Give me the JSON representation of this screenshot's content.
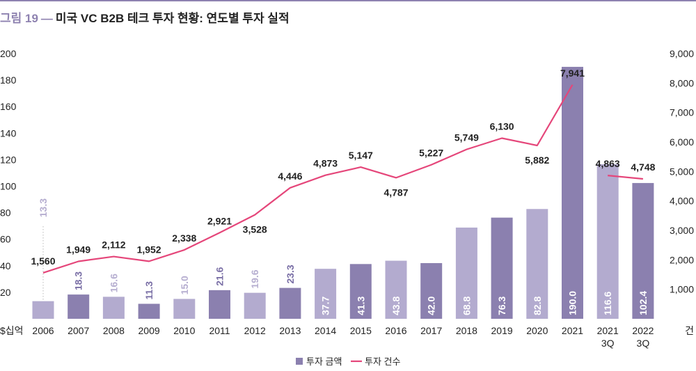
{
  "title": {
    "figure_label": "그림 19",
    "separator": "—",
    "text": "미국 VC B2B 테크 투자 현황: 연도별 투자 실적"
  },
  "colors": {
    "bar_dark": "#8b80af",
    "bar_light": "#b3abcf",
    "line": "#e5467a",
    "text": "#222222",
    "label_dark_on_white": "#7a6fa6",
    "label_light_on_white": "#b6aed0",
    "label_in_bar": "#ffffff"
  },
  "chart_data": {
    "type": "bar",
    "categories": [
      "2006",
      "2007",
      "2008",
      "2009",
      "2010",
      "2011",
      "2012",
      "2013",
      "2014",
      "2015",
      "2016",
      "2017",
      "2018",
      "2019",
      "2020",
      "2021",
      "2021\n3Q",
      "2022\n3Q"
    ],
    "left_axis": {
      "unit_label": "$십억",
      "ylim": [
        0,
        200
      ],
      "ticks": [
        20,
        40,
        60,
        80,
        100,
        120,
        140,
        160,
        180,
        200
      ]
    },
    "right_axis": {
      "unit_label": "건",
      "ylim": [
        0,
        9000
      ],
      "ticks": [
        "1,000",
        "2,000",
        "3,000",
        "4,000",
        "5,000",
        "6,000",
        "7,000",
        "8,000",
        "9,000"
      ],
      "tick_values": [
        1000,
        2000,
        3000,
        4000,
        5000,
        6000,
        7000,
        8000,
        9000
      ]
    },
    "series": [
      {
        "name": "투자 금액",
        "type": "bar",
        "axis": "left",
        "values": [
          13.3,
          18.3,
          16.6,
          11.3,
          15.0,
          21.6,
          19.6,
          23.3,
          37.7,
          41.3,
          43.8,
          42.0,
          68.8,
          76.3,
          82.8,
          190.0,
          116.6,
          102.4
        ],
        "labels": [
          "13.3",
          "18.3",
          "16.6",
          "11.3",
          "15.0",
          "21.6",
          "19.6",
          "23.3",
          "37.7",
          "41.3",
          "43.8",
          "42.0",
          "68.8",
          "76.3",
          "82.8",
          "190.0",
          "116.6",
          "102.4"
        ],
        "shade": [
          "light",
          "dark",
          "light",
          "dark",
          "light",
          "dark",
          "light",
          "dark",
          "light",
          "dark",
          "light",
          "dark",
          "light",
          "dark",
          "light",
          "dark",
          "light",
          "dark"
        ]
      },
      {
        "name": "투자 건수",
        "type": "line",
        "axis": "right",
        "values": [
          1560,
          1949,
          2112,
          1952,
          2338,
          2921,
          3528,
          4446,
          4873,
          5147,
          4787,
          5227,
          5749,
          6130,
          5882,
          7941,
          4863,
          4748
        ],
        "labels": [
          "1,560",
          "1,949",
          "2,112",
          "1,952",
          "2,338",
          "2,921",
          "3,528",
          "4,446",
          "4,873",
          "5,147",
          "4,787",
          "5,227",
          "5,749",
          "6,130",
          "5,882",
          "7,941",
          "4,863",
          "4,748"
        ],
        "break_after_index": 15
      }
    ],
    "legend": {
      "position": "bottom-center",
      "items": [
        "투자 금액",
        "투자 건수"
      ]
    },
    "grid": false
  }
}
